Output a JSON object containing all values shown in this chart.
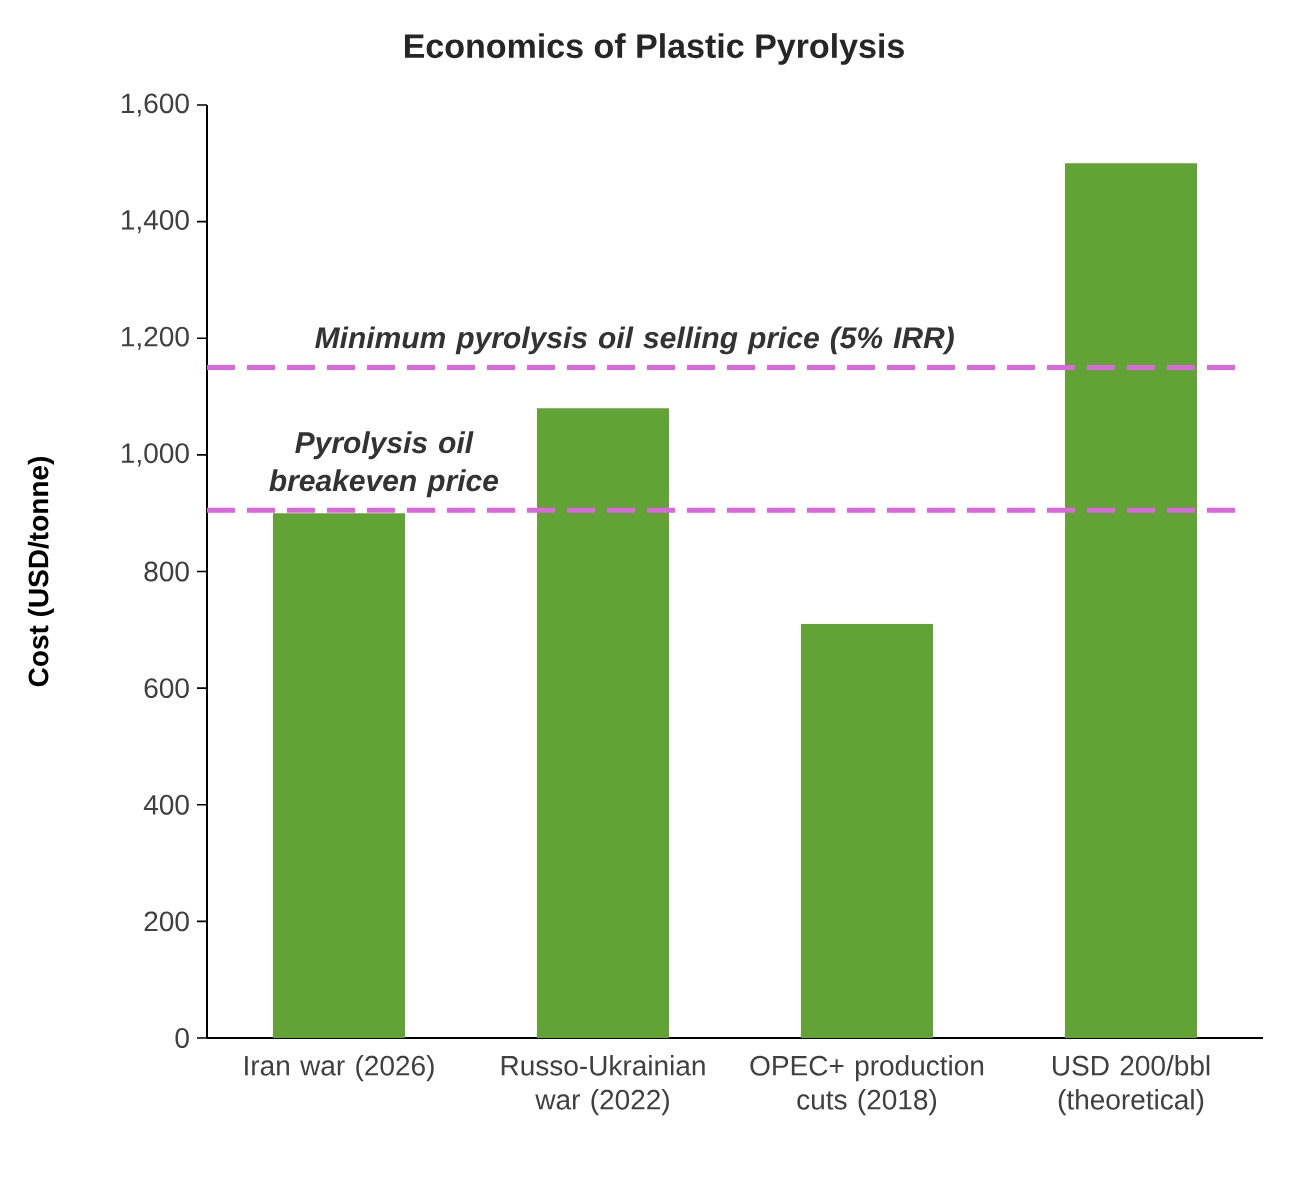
{
  "chart_data": {
    "type": "bar",
    "title": "Economics of Plastic Pyrolysis",
    "ylabel": "Cost (USD/tonne)",
    "categories": [
      "Iran war (2026)",
      "Russo-Ukrainian war (2022)",
      "OPEC+ production cuts (2018)",
      "USD 200/bbl (theoretical)"
    ],
    "values": [
      900,
      1080,
      710,
      1500
    ],
    "color": "#62a336",
    "ylim": [
      0,
      1600
    ],
    "yticks": [
      0,
      200,
      400,
      600,
      800,
      {
        "value": 1000,
        "label": "1,000"
      },
      {
        "value": 1200,
        "label": "1,200"
      },
      {
        "value": 1400,
        "label": "1,400"
      },
      {
        "value": 1600,
        "label": "1,600"
      }
    ],
    "ref_lines": [
      {
        "axis": "y",
        "value": 1150,
        "label": "Minimum pyrolysis oil selling price (5% IRR)",
        "color": "#db66dd",
        "line_style": "dashed"
      },
      {
        "axis": "y",
        "value": 905,
        "label": "Pyrolysis oil breakeven price",
        "color": "#db66dd",
        "line_style": "dashed"
      }
    ],
    "grid": false
  }
}
